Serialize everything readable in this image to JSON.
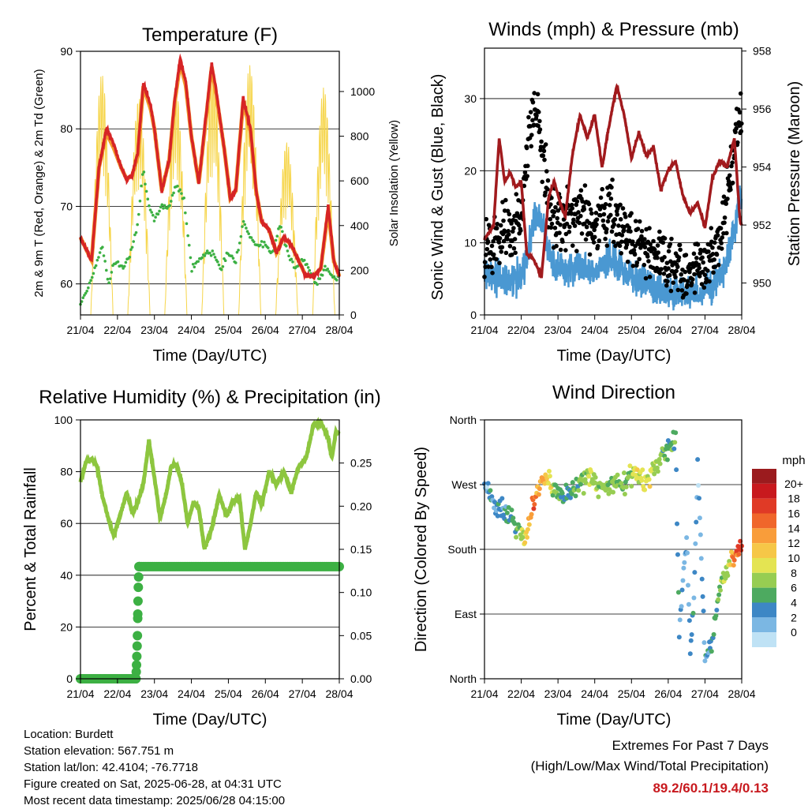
{
  "panels": {
    "temp": {
      "title": "Temperature (F)",
      "ylabel_left": "2m & 9m T (Red, Orange) & 2m Td (Green)",
      "ylabel_right": "Solar Insolation (Yellow)",
      "xlabel": "Time (Day/UTC)"
    },
    "wind": {
      "title": "Winds (mph) & Pressure (mb)",
      "ylabel_left": "Sonic Wind & Gust (Blue, Black)",
      "ylabel_right": "Station Pressure (Maroon)",
      "xlabel": "Time (Day/UTC)"
    },
    "rh": {
      "title": "Relative Humidity (%) & Precipitation (in)",
      "ylabel_left": "Percent & Total Rainfall",
      "xlabel": "Time (Day/UTC)"
    },
    "dir": {
      "title": "Wind Direction",
      "ylabel_left": "Direction (Colored By Speed)",
      "xlabel": "Time (Day/UTC)"
    }
  },
  "colorbar": {
    "title": "mph",
    "labels": [
      "20+",
      "18",
      "16",
      "14",
      "12",
      "10",
      "8",
      "6",
      "4",
      "2",
      "0"
    ],
    "colors": [
      "#9b1b1e",
      "#c8191e",
      "#e03a26",
      "#f0662b",
      "#f99d3a",
      "#f6c747",
      "#e4e452",
      "#97cd52",
      "#4daa60",
      "#3d87c5",
      "#7bb7e3",
      "#bfe2f5"
    ]
  },
  "info": {
    "location": "Location: Burdett",
    "elevation": "Station elevation: 567.751 m",
    "latlon": "Station lat/lon: 42.4104; -76.7718",
    "created": "Figure created on Sat, 2025-06-28, at 04:31 UTC",
    "recent": "Most recent data timestamp: 2025/06/28 04:15:00"
  },
  "extremes": {
    "line1": "Extremes For Past 7 Days",
    "line2": "(High/Low/Max Wind/Total Precipitation)",
    "values": "89.2/60.1/19.4/0.13"
  },
  "chart_data": [
    {
      "type": "line",
      "title": "Temperature (F)",
      "xlabel": "Time (Day/UTC)",
      "ylabel": "2m & 9m T (Red, Orange) & 2m Td (Green)",
      "y2label": "Solar Insolation (Yellow)",
      "xticks": [
        "21/04",
        "22/04",
        "23/04",
        "24/04",
        "25/04",
        "26/04",
        "27/04",
        "28/04"
      ],
      "xlim": [
        0,
        7
      ],
      "ylim": [
        56,
        90
      ],
      "yticks": [
        60,
        70,
        80,
        90
      ],
      "y2lim": [
        0,
        1180
      ],
      "y2ticks": [
        0,
        200,
        400,
        600,
        800,
        1000
      ],
      "grid": true,
      "series": [
        {
          "name": "2m T",
          "color": "#d62426",
          "axis": "left",
          "x": [
            0,
            0.3,
            0.5,
            0.7,
            0.9,
            1.1,
            1.25,
            1.4,
            1.55,
            1.7,
            1.9,
            2.0,
            2.2,
            2.4,
            2.55,
            2.7,
            2.85,
            3.0,
            3.2,
            3.4,
            3.55,
            3.7,
            3.9,
            4.05,
            4.2,
            4.4,
            4.6,
            4.75,
            4.9,
            5.1,
            5.3,
            5.5,
            5.7,
            5.9,
            6.1,
            6.3,
            6.5,
            6.7,
            6.85,
            7.0
          ],
          "y": [
            66,
            63,
            75,
            80,
            78,
            75,
            73.5,
            74,
            77,
            86,
            83,
            80,
            72,
            76,
            84,
            89,
            86,
            79,
            73,
            82,
            88.5,
            84,
            77,
            71,
            72,
            84,
            80,
            72,
            68,
            67,
            64,
            66,
            65,
            63,
            61,
            61,
            62,
            70,
            63,
            61
          ]
        },
        {
          "name": "9m T",
          "color": "#f39a2a",
          "axis": "left",
          "x": [
            0,
            0.3,
            0.5,
            0.7,
            0.9,
            1.1,
            1.25,
            1.4,
            1.55,
            1.7,
            1.9,
            2.0,
            2.2,
            2.4,
            2.55,
            2.7,
            2.85,
            3.0,
            3.2,
            3.4,
            3.55,
            3.7,
            3.9,
            4.05,
            4.2,
            4.4,
            4.6,
            4.75,
            4.9,
            5.1,
            5.3,
            5.5,
            5.7,
            5.9,
            6.1,
            6.3,
            6.5,
            6.7,
            6.85,
            7.0
          ],
          "y": [
            66,
            63,
            75,
            79.5,
            77.5,
            75,
            73.5,
            74,
            76.5,
            85.5,
            82.5,
            80,
            72,
            76,
            83.5,
            88.5,
            85.5,
            79,
            73,
            81.5,
            88,
            83.5,
            77,
            71,
            72,
            83.5,
            79.5,
            72,
            68,
            67,
            64,
            66,
            65,
            63,
            61,
            61,
            62,
            69.5,
            63,
            61
          ]
        },
        {
          "name": "2m Td",
          "color": "#3cb043",
          "axis": "left",
          "x": [
            0,
            0.25,
            0.45,
            0.6,
            0.75,
            0.95,
            1.15,
            1.35,
            1.55,
            1.7,
            1.85,
            2.0,
            2.2,
            2.4,
            2.6,
            2.8,
            3.0,
            3.2,
            3.4,
            3.6,
            3.8,
            4.0,
            4.2,
            4.4,
            4.6,
            4.8,
            5.0,
            5.2,
            5.4,
            5.6,
            5.8,
            6.0,
            6.2,
            6.4,
            6.6,
            6.8,
            7.0
          ],
          "y": [
            57.5,
            60,
            63,
            65,
            60,
            63,
            62,
            64,
            68,
            75,
            70,
            68,
            70,
            70,
            73,
            71,
            62,
            63,
            64,
            64,
            62,
            64,
            63,
            68,
            66,
            65,
            65,
            64,
            68,
            64,
            62,
            63,
            62,
            60,
            62,
            61,
            60.5
          ]
        }
      ],
      "insolation_days": {
        "name": "Solar Insolation",
        "color": "#f6d54a",
        "axis": "right",
        "day_centers": [
          0.58,
          1.58,
          2.58,
          3.58,
          4.58,
          5.58,
          6.58
        ],
        "peaks": [
          1080,
          980,
          1020,
          1100,
          1120,
          780,
          1020
        ]
      }
    },
    {
      "type": "scatter",
      "title": "Winds (mph) & Pressure (mb)",
      "xlabel": "Time (Day/UTC)",
      "ylabel": "Sonic Wind & Gust (Blue, Black)",
      "y2label": "Station Pressure (Maroon)",
      "xticks": [
        "21/04",
        "22/04",
        "23/04",
        "24/04",
        "25/04",
        "26/04",
        "27/04",
        "28/04"
      ],
      "xlim": [
        0,
        7
      ],
      "ylim": [
        0,
        37
      ],
      "yticks": [
        0,
        10,
        20,
        30
      ],
      "y2lim": [
        948.9,
        958.1
      ],
      "y2ticks": [
        950,
        952,
        954,
        956,
        958
      ],
      "grid": true,
      "series": [
        {
          "name": "Sonic Wind",
          "color": "#4a98d2",
          "x": [
            0,
            0.5,
            1.0,
            1.2,
            1.4,
            1.6,
            1.8,
            2.2,
            2.6,
            3.0,
            3.4,
            3.8,
            4.2,
            4.6,
            5.0,
            5.4,
            5.8,
            6.2,
            6.5,
            6.8,
            7.0
          ],
          "y": [
            6,
            5,
            5,
            9,
            14,
            12,
            8,
            6,
            7,
            6,
            8,
            6,
            5,
            4,
            3,
            3,
            3,
            4,
            6,
            12,
            17
          ]
        },
        {
          "name": "Gust",
          "color": "#000000",
          "x": [
            0,
            0.5,
            1.0,
            1.2,
            1.4,
            1.6,
            1.8,
            2.2,
            2.6,
            3.0,
            3.4,
            3.8,
            4.2,
            4.6,
            5.0,
            5.4,
            5.8,
            6.2,
            6.5,
            6.8,
            7.0
          ],
          "y": [
            9,
            11,
            12,
            25,
            28,
            22,
            14,
            13,
            14,
            12,
            15,
            11,
            10,
            9,
            7,
            6,
            6,
            8,
            12,
            24,
            28
          ]
        },
        {
          "name": "Station Pressure",
          "color": "#a11a1d",
          "axis": "right",
          "x": [
            0,
            0.25,
            0.4,
            0.55,
            0.7,
            0.85,
            1.0,
            1.15,
            1.35,
            1.55,
            1.75,
            1.9,
            2.05,
            2.2,
            2.4,
            2.6,
            2.8,
            3.0,
            3.2,
            3.4,
            3.6,
            3.8,
            4.0,
            4.2,
            4.4,
            4.6,
            4.8,
            5.0,
            5.2,
            5.4,
            5.6,
            5.8,
            6.0,
            6.2,
            6.4,
            6.6,
            6.8,
            6.95,
            7.0
          ],
          "y": [
            951.5,
            952.0,
            955.0,
            953.5,
            953.8,
            953.3,
            953.5,
            951.0,
            950.8,
            950.2,
            953.0,
            953.5,
            952.8,
            952.3,
            954.5,
            955.8,
            955.0,
            955.8,
            954.0,
            955.5,
            956.8,
            955.8,
            954.3,
            955.2,
            954.4,
            954.7,
            953.2,
            953.9,
            954.2,
            953.0,
            952.4,
            952.8,
            951.9,
            953.6,
            954.2,
            954.0,
            955.0,
            952.2,
            952.0
          ]
        }
      ]
    },
    {
      "type": "line",
      "title": "Relative Humidity (%) & Precipitation (in)",
      "xlabel": "Time (Day/UTC)",
      "ylabel": "Percent & Total Rainfall",
      "xticks": [
        "21/04",
        "22/04",
        "23/04",
        "24/04",
        "25/04",
        "26/04",
        "27/04",
        "28/04"
      ],
      "xlim": [
        0,
        7
      ],
      "ylim": [
        0,
        100
      ],
      "yticks": [
        0,
        20,
        40,
        60,
        80,
        100
      ],
      "y2lim": [
        0,
        0.3
      ],
      "y2ticks": [
        0.0,
        0.05,
        0.1,
        0.15,
        0.2,
        0.25
      ],
      "grid": true,
      "series": [
        {
          "name": "Relative Humidity",
          "color": "#8dc63f",
          "axis": "left",
          "x": [
            0,
            0.15,
            0.3,
            0.45,
            0.6,
            0.75,
            0.9,
            1.05,
            1.25,
            1.4,
            1.55,
            1.7,
            1.85,
            2.0,
            2.15,
            2.3,
            2.45,
            2.6,
            2.75,
            2.9,
            3.05,
            3.2,
            3.35,
            3.55,
            3.75,
            3.95,
            4.15,
            4.3,
            4.45,
            4.6,
            4.75,
            4.9,
            5.1,
            5.3,
            5.5,
            5.7,
            5.9,
            6.1,
            6.3,
            6.5,
            6.7,
            6.8,
            6.9,
            7.0
          ],
          "y": [
            76,
            84,
            85,
            82,
            70,
            62,
            55,
            62,
            72,
            64,
            68,
            75,
            92,
            78,
            62,
            70,
            82,
            83,
            75,
            60,
            68,
            66,
            50,
            58,
            71,
            63,
            69,
            70,
            50,
            60,
            72,
            67,
            80,
            75,
            80,
            72,
            82,
            85,
            98,
            99,
            93,
            85,
            95,
            95
          ]
        },
        {
          "name": "Total Rainfall",
          "color": "#3cb043",
          "axis": "right",
          "x": [
            0,
            1.0,
            1.5,
            1.52,
            1.54,
            1.56,
            1.58,
            1.6,
            7.0
          ],
          "y": [
            0.0,
            0.0,
            0.0,
            0.02,
            0.05,
            0.1,
            0.13,
            0.13,
            0.13
          ]
        }
      ]
    },
    {
      "type": "scatter",
      "title": "Wind Direction",
      "xlabel": "Time (Day/UTC)",
      "ylabel": "Direction (Colored By Speed)",
      "xticks": [
        "21/04",
        "22/04",
        "23/04",
        "24/04",
        "25/04",
        "26/04",
        "27/04",
        "28/04"
      ],
      "xlim": [
        0,
        7
      ],
      "ylim": [
        0,
        360
      ],
      "yticks": [
        "North",
        "East",
        "South",
        "West",
        "North"
      ],
      "ytick_values": [
        0,
        90,
        180,
        270,
        360
      ],
      "grid": true,
      "colorbar_units": "mph",
      "series": [
        {
          "name": "Wind Direction",
          "x": [
            0,
            0.3,
            0.6,
            0.9,
            1.1,
            1.3,
            1.5,
            1.7,
            2.0,
            2.3,
            2.6,
            2.9,
            3.2,
            3.5,
            3.8,
            4.1,
            4.4,
            4.7,
            5.0,
            5.2,
            5.3,
            5.5,
            5.6,
            5.7,
            5.8,
            6.0,
            6.2,
            6.4,
            6.6,
            6.8,
            7.0
          ],
          "y": [
            270,
            240,
            230,
            210,
            195,
            240,
            270,
            280,
            255,
            260,
            270,
            280,
            265,
            275,
            270,
            290,
            275,
            300,
            320,
            330,
            60,
            200,
            40,
            110,
            300,
            30,
            50,
            130,
            150,
            175,
            180
          ],
          "speed": [
            3,
            4,
            5,
            6,
            11,
            16,
            14,
            12,
            6,
            5,
            6,
            9,
            7,
            8,
            7,
            9,
            10,
            8,
            6,
            6,
            3,
            2,
            4,
            3,
            2,
            4,
            5,
            7,
            9,
            15,
            18
          ]
        }
      ]
    }
  ]
}
